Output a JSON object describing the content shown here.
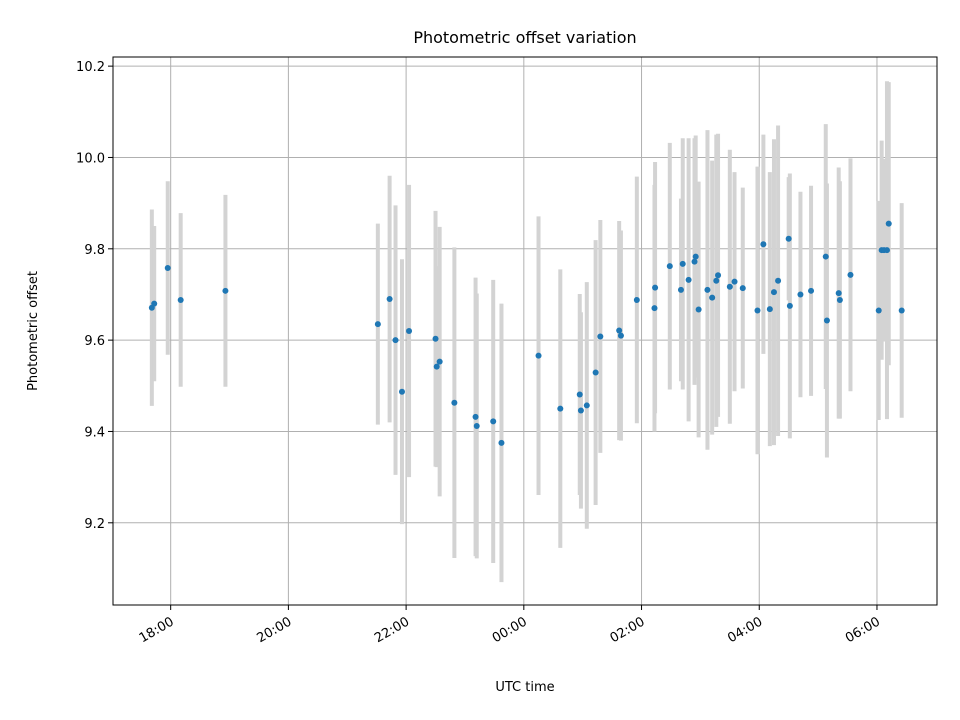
{
  "chart_data": {
    "type": "scatter",
    "title": "Photometric offset variation",
    "xlabel": "UTC time",
    "ylabel": "Photometric offset",
    "x_unit": "hours",
    "x_range": [
      17.02,
      31.02
    ],
    "x_ticks": [
      {
        "value": 18,
        "label": "18:00"
      },
      {
        "value": 20,
        "label": "20:00"
      },
      {
        "value": 22,
        "label": "22:00"
      },
      {
        "value": 24,
        "label": "00:00"
      },
      {
        "value": 26,
        "label": "02:00"
      },
      {
        "value": 28,
        "label": "04:00"
      },
      {
        "value": 30,
        "label": "06:00"
      }
    ],
    "y_range": [
      9.02,
      10.22
    ],
    "y_ticks": [
      {
        "value": 9.2,
        "label": "9.2"
      },
      {
        "value": 9.4,
        "label": "9.4"
      },
      {
        "value": 9.6,
        "label": "9.6"
      },
      {
        "value": 9.8,
        "label": "9.8"
      },
      {
        "value": 10.0,
        "label": "10.0"
      },
      {
        "value": 10.2,
        "label": "10.2"
      }
    ],
    "grid": true,
    "point_color": "#1f77b4",
    "errorbar_color": "#d3d3d3",
    "points": [
      [
        17.68,
        9.671,
        0.215
      ],
      [
        17.72,
        9.68,
        0.17
      ],
      [
        17.95,
        9.758,
        0.19
      ],
      [
        18.17,
        9.688,
        0.19
      ],
      [
        18.93,
        9.708,
        0.21
      ],
      [
        21.52,
        9.635,
        0.22
      ],
      [
        21.72,
        9.69,
        0.27
      ],
      [
        21.82,
        9.6,
        0.295
      ],
      [
        21.93,
        9.487,
        0.29
      ],
      [
        22.05,
        9.62,
        0.32
      ],
      [
        22.5,
        9.603,
        0.28
      ],
      [
        22.52,
        9.542,
        0.22
      ],
      [
        22.57,
        9.553,
        0.295
      ],
      [
        22.82,
        9.463,
        0.34
      ],
      [
        23.18,
        9.432,
        0.305
      ],
      [
        23.2,
        9.412,
        0.29
      ],
      [
        23.48,
        9.422,
        0.31
      ],
      [
        23.62,
        9.375,
        0.305
      ],
      [
        24.25,
        9.566,
        0.305
      ],
      [
        24.62,
        9.45,
        0.305
      ],
      [
        24.95,
        9.481,
        0.22
      ],
      [
        24.97,
        9.446,
        0.215
      ],
      [
        25.07,
        9.457,
        0.27
      ],
      [
        25.22,
        9.529,
        0.29
      ],
      [
        25.3,
        9.608,
        0.255
      ],
      [
        25.62,
        9.621,
        0.24
      ],
      [
        25.65,
        9.61,
        0.23
      ],
      [
        25.92,
        9.688,
        0.27
      ],
      [
        26.22,
        9.67,
        0.27
      ],
      [
        26.23,
        9.715,
        0.275
      ],
      [
        26.48,
        9.762,
        0.27
      ],
      [
        26.67,
        9.71,
        0.2
      ],
      [
        26.7,
        9.767,
        0.275
      ],
      [
        26.8,
        9.732,
        0.31
      ],
      [
        26.9,
        9.772,
        0.27
      ],
      [
        26.92,
        9.783,
        0.265
      ],
      [
        26.97,
        9.667,
        0.28
      ],
      [
        27.12,
        9.71,
        0.35
      ],
      [
        27.2,
        9.693,
        0.3
      ],
      [
        27.27,
        9.73,
        0.32
      ],
      [
        27.3,
        9.742,
        0.31
      ],
      [
        27.5,
        9.717,
        0.3
      ],
      [
        27.58,
        9.728,
        0.24
      ],
      [
        27.72,
        9.714,
        0.22
      ],
      [
        27.97,
        9.665,
        0.315
      ],
      [
        28.07,
        9.81,
        0.24
      ],
      [
        28.18,
        9.668,
        0.3
      ],
      [
        28.25,
        9.705,
        0.335
      ],
      [
        28.32,
        9.73,
        0.34
      ],
      [
        28.5,
        9.822,
        0.135
      ],
      [
        28.52,
        9.675,
        0.29
      ],
      [
        28.7,
        9.7,
        0.225
      ],
      [
        28.88,
        9.708,
        0.23
      ],
      [
        29.13,
        9.783,
        0.29
      ],
      [
        29.15,
        9.643,
        0.3
      ],
      [
        29.35,
        9.703,
        0.275
      ],
      [
        29.37,
        9.688,
        0.26
      ],
      [
        29.55,
        9.743,
        0.255
      ],
      [
        30.03,
        9.665,
        0.24
      ],
      [
        30.08,
        9.797,
        0.24
      ],
      [
        30.12,
        9.797,
        0.2
      ],
      [
        30.17,
        9.797,
        0.37
      ],
      [
        30.2,
        9.855,
        0.31
      ],
      [
        30.42,
        9.665,
        0.235
      ]
    ]
  }
}
